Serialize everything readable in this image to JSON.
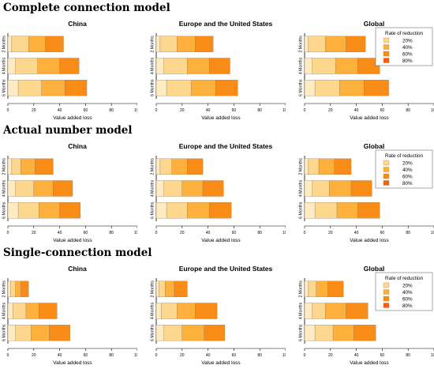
{
  "legend": {
    "title": "Rate of reduction",
    "items": [
      {
        "label": "20%",
        "color": "#fdd78d"
      },
      {
        "label": "40%",
        "color": "#fdb13c"
      },
      {
        "label": "60%",
        "color": "#f98c17"
      },
      {
        "label": "80%",
        "color": "#f35f10"
      }
    ]
  },
  "base_color": "#fdebc4",
  "models": [
    {
      "title": "Complete connection model",
      "panels": [
        {
          "title": "China",
          "xlabel": "Value added loss",
          "xlim": [
            0,
            100
          ],
          "xticks": [
            0,
            20,
            40,
            60,
            80,
            100
          ],
          "categories": [
            "2 Months",
            "4 Months",
            "6 Months"
          ],
          "cumulative": [
            [
              3,
              16,
              29,
              43
            ],
            [
              6,
              23,
              40,
              55
            ],
            [
              8,
              26,
              44,
              61
            ]
          ],
          "show_legend": false
        },
        {
          "title": "Europe and the United States",
          "xlabel": "Value added loss",
          "xlim": [
            0,
            100
          ],
          "xticks": [
            0,
            20,
            40,
            60,
            80,
            100
          ],
          "categories": [
            "2 Months",
            "4 Months",
            "6 Months"
          ],
          "cumulative": [
            [
              3,
              16,
              30,
              44
            ],
            [
              6,
              24,
              41,
              57
            ],
            [
              8,
              27,
              46,
              63
            ]
          ],
          "show_legend": false
        },
        {
          "title": "Global",
          "xlabel": "Value added loss",
          "xlim": [
            0,
            100
          ],
          "xticks": [
            0,
            20,
            40,
            60,
            80,
            100
          ],
          "categories": [
            "2 Months",
            "4 Months",
            "6 Months"
          ],
          "cumulative": [
            [
              3,
              16,
              32,
              47
            ],
            [
              6,
              24,
              41,
              58
            ],
            [
              8,
              27,
              46,
              65
            ]
          ],
          "show_legend": true
        }
      ]
    },
    {
      "title": "Actual number model",
      "panels": [
        {
          "title": "China",
          "xlabel": "Value added loss",
          "xlim": [
            0,
            100
          ],
          "xticks": [
            0,
            20,
            40,
            60,
            80,
            100
          ],
          "categories": [
            "2 Months",
            "4 Months",
            "6 Months"
          ],
          "cumulative": [
            [
              3,
              10,
              21,
              35
            ],
            [
              6,
              20,
              35,
              50
            ],
            [
              8,
              24,
              40,
              56
            ]
          ],
          "show_legend": false
        },
        {
          "title": "Europe and the United States",
          "xlabel": "Value added loss",
          "xlim": [
            0,
            100
          ],
          "xticks": [
            0,
            20,
            40,
            60,
            80,
            100
          ],
          "categories": [
            "2 Months",
            "4 Months",
            "6 Months"
          ],
          "cumulative": [
            [
              3,
              12,
              24,
              36
            ],
            [
              6,
              20,
              36,
              52
            ],
            [
              8,
              24,
              41,
              58
            ]
          ],
          "show_legend": false
        },
        {
          "title": "Global",
          "xlabel": "Value added loss",
          "xlim": [
            0,
            100
          ],
          "xticks": [
            0,
            20,
            40,
            60,
            80,
            100
          ],
          "categories": [
            "2 Months",
            "4 Months",
            "6 Months"
          ],
          "cumulative": [
            [
              3,
              11,
              23,
              36
            ],
            [
              6,
              19,
              36,
              52
            ],
            [
              8,
              25,
              41,
              58
            ]
          ],
          "show_legend": true
        }
      ]
    },
    {
      "title": "Single-connection model",
      "panels": [
        {
          "title": "China",
          "xlabel": "Value added loss",
          "xlim": [
            0,
            100
          ],
          "xticks": [
            0,
            20,
            40,
            60,
            80,
            100
          ],
          "categories": [
            "2 Months",
            "4 Months",
            "6 Months"
          ],
          "cumulative": [
            [
              2,
              6,
              10,
              16
            ],
            [
              4,
              14,
              24,
              38
            ],
            [
              6,
              18,
              32,
              48
            ]
          ],
          "show_legend": false
        },
        {
          "title": "Europe and the United States",
          "xlabel": "Value added loss",
          "xlim": [
            0,
            100
          ],
          "xticks": [
            0,
            20,
            40,
            60,
            80,
            100
          ],
          "categories": [
            "2 Months",
            "4 Months",
            "6 Months"
          ],
          "cumulative": [
            [
              2,
              7,
              14,
              24
            ],
            [
              4,
              16,
              30,
              47
            ],
            [
              6,
              20,
              37,
              53
            ]
          ],
          "show_legend": false
        },
        {
          "title": "Global",
          "xlabel": "Value added loss",
          "xlim": [
            0,
            100
          ],
          "xticks": [
            0,
            20,
            40,
            60,
            80,
            100
          ],
          "categories": [
            "2 Months",
            "4 Months",
            "6 Months"
          ],
          "cumulative": [
            [
              3,
              9,
              18,
              30
            ],
            [
              6,
              16,
              32,
              49
            ],
            [
              8,
              22,
              38,
              55
            ]
          ],
          "show_legend": true
        }
      ]
    }
  ]
}
